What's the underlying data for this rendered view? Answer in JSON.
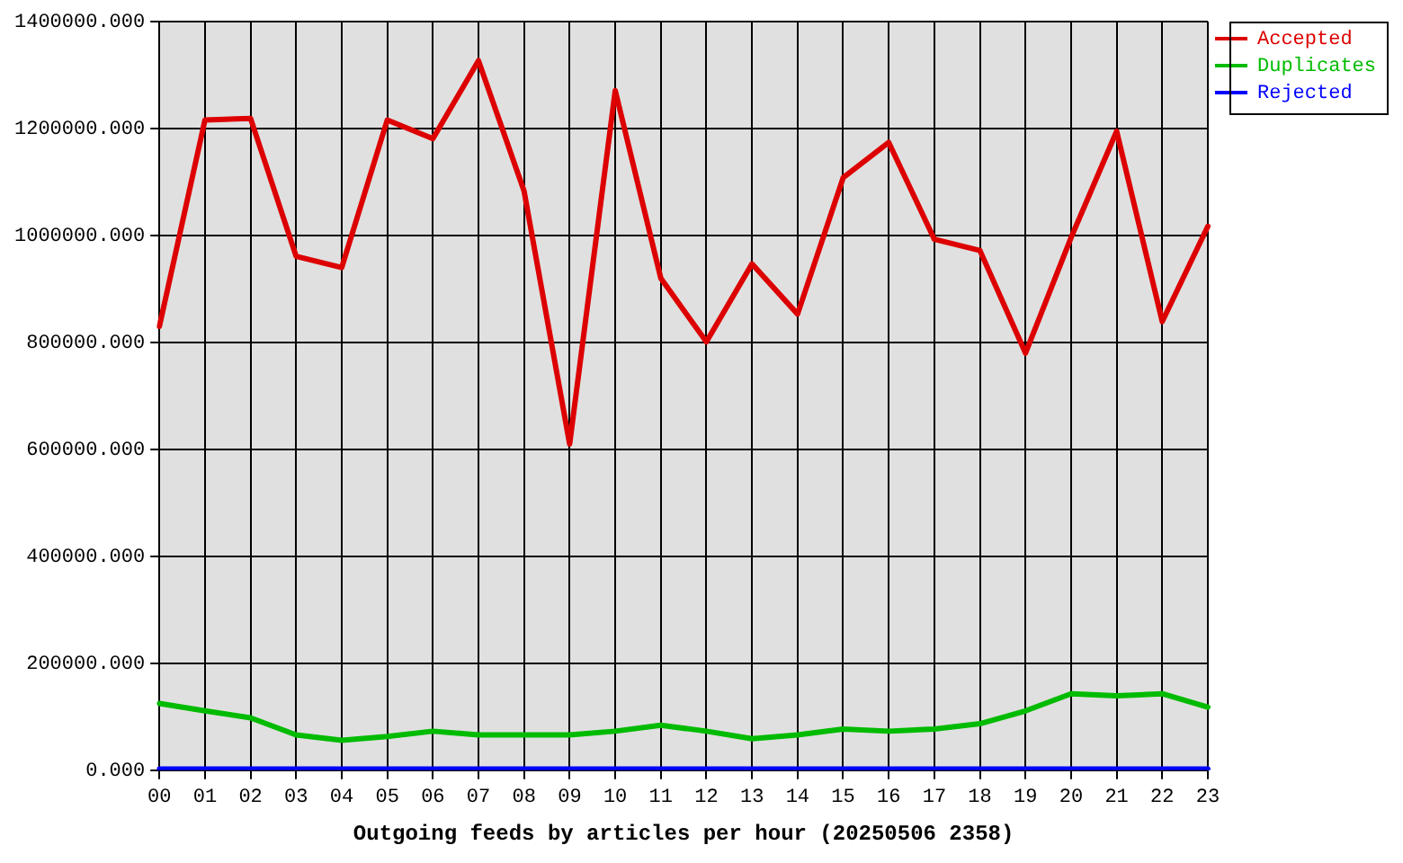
{
  "chart_data": {
    "type": "line",
    "xlabel": "Outgoing feeds by articles per hour (20250506 2358)",
    "categories": [
      "00",
      "01",
      "02",
      "03",
      "04",
      "05",
      "06",
      "07",
      "08",
      "09",
      "10",
      "11",
      "12",
      "13",
      "14",
      "15",
      "16",
      "17",
      "18",
      "19",
      "20",
      "21",
      "22",
      "23"
    ],
    "series": [
      {
        "name": "Accepted",
        "color": "#dd0000",
        "values": [
          830000,
          1216000,
          1219000,
          961000,
          940000,
          1216000,
          1181000,
          1327000,
          1083000,
          610000,
          1271000,
          920000,
          801000,
          947000,
          853000,
          1108000,
          1174000,
          993000,
          972000,
          780000,
          996000,
          1195000,
          839000,
          1017000
        ]
      },
      {
        "name": "Duplicates",
        "color": "#00bb00",
        "values": [
          125000,
          111000,
          98000,
          66000,
          56000,
          63000,
          73000,
          66000,
          66000,
          66000,
          73000,
          84000,
          73000,
          59000,
          66000,
          77000,
          73000,
          77000,
          87000,
          111000,
          143000,
          139000,
          143000,
          118000
        ]
      },
      {
        "name": "Rejected",
        "color": "#0000ff",
        "values": [
          2000,
          2000,
          2000,
          2000,
          2000,
          2000,
          2000,
          2000,
          2000,
          2000,
          2000,
          2000,
          2000,
          2000,
          2000,
          2000,
          2000,
          2000,
          2000,
          2000,
          2000,
          2000,
          2000,
          2000
        ]
      }
    ],
    "ylim": [
      0,
      1400000
    ],
    "yticks": [
      {
        "value": 0,
        "label": "0.000"
      },
      {
        "value": 200000,
        "label": "200000.000"
      },
      {
        "value": 400000,
        "label": "400000.000"
      },
      {
        "value": 600000,
        "label": "600000.000"
      },
      {
        "value": 800000,
        "label": "800000.000"
      },
      {
        "value": 1000000,
        "label": "1000000.000"
      },
      {
        "value": 1200000,
        "label": "1200000.000"
      },
      {
        "value": 1400000,
        "label": "1400000.000"
      }
    ],
    "grid": true,
    "legend": "top right",
    "marker": "none",
    "line_style": "solid"
  }
}
